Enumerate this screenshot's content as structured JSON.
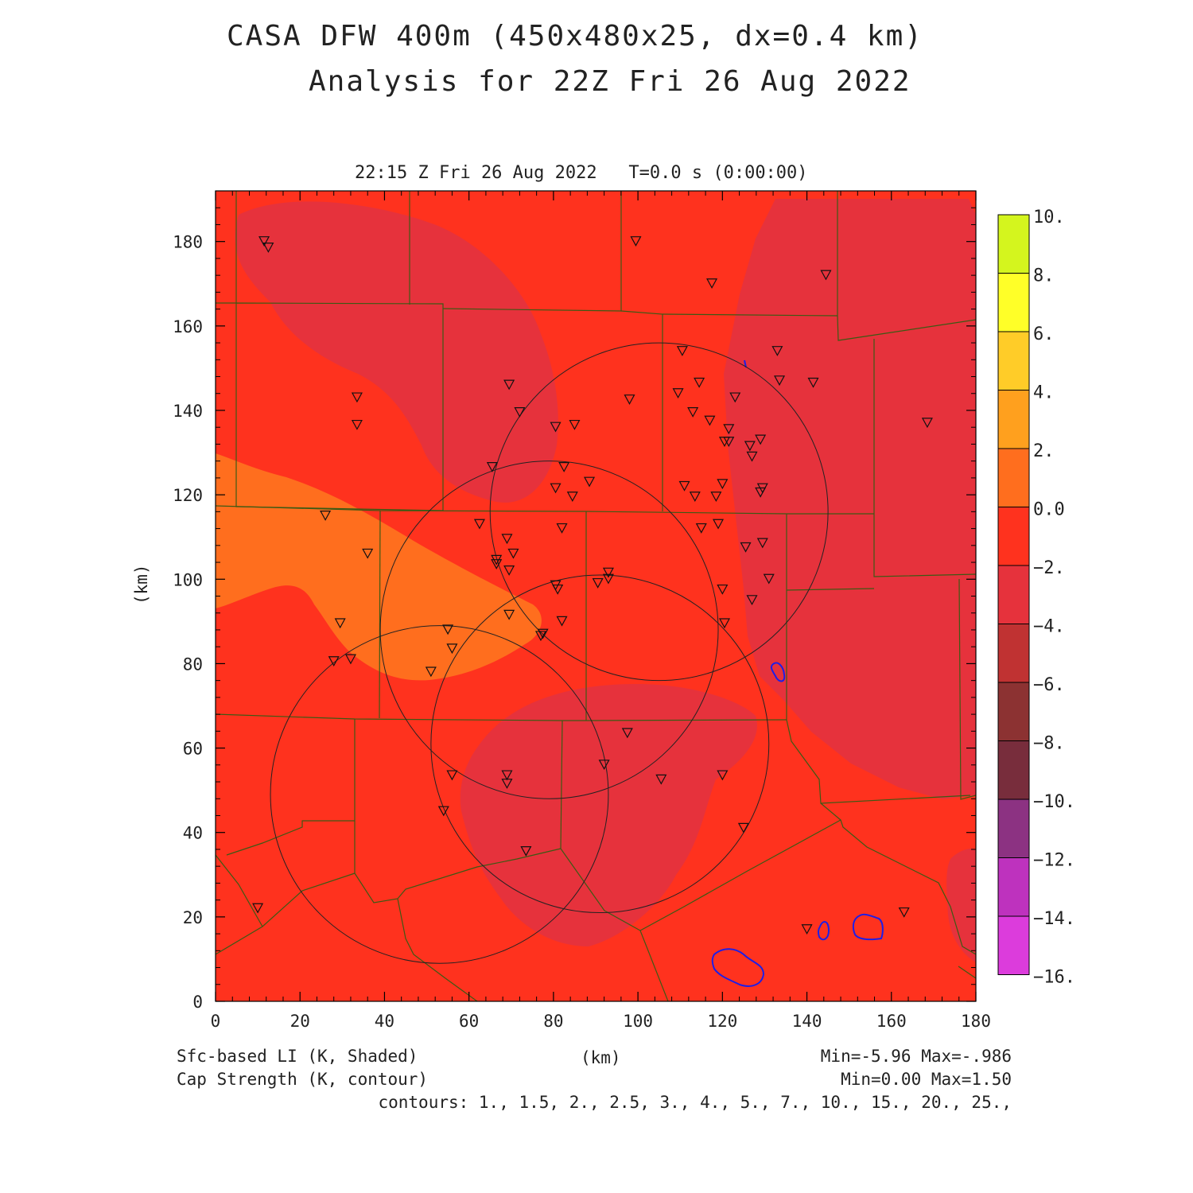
{
  "title_line1": "CASA DFW 400m (450x480x25, dx=0.4 km)",
  "title_line2": "Analysis for 22Z Fri 26 Aug 2022",
  "valid_time": "22:15 Z Fri 26 Aug 2022   T=0.0 s (0:00:00)",
  "xlabel": "(km)",
  "ylabel": "(km)",
  "shaded_label": "Sfc-based LI (K, Shaded)",
  "contour_label": "Cap Strength (K, contour)",
  "shaded_range": "Min=-5.96 Max=-.986",
  "contour_range": "Min=0.00 Max=1.50",
  "contour_list": "contours: 1., 1.5, 2., 2.5, 3., 4., 5., 7., 10., 15., 20., 25.,",
  "chart_data": {
    "type": "heatmap",
    "x_ticks": [
      0,
      20,
      40,
      60,
      80,
      100,
      120,
      140,
      160,
      180
    ],
    "y_ticks": [
      0,
      20,
      40,
      60,
      80,
      100,
      120,
      140,
      160,
      180
    ],
    "xlim": [
      0,
      180
    ],
    "ylim": [
      0,
      192
    ],
    "colorbar": {
      "labels": [
        "10.",
        "8.",
        "6.",
        "4.",
        "2.",
        "0.0",
        "−2.",
        "−4.",
        "−6.",
        "−8.",
        "−10.",
        "−12.",
        "−14.",
        "−16."
      ],
      "colors": [
        "#a8e01e",
        "#d4f51e",
        "#ffff28",
        "#ffcc28",
        "#ffa01e",
        "#ff6e1e",
        "#ff321e",
        "#e6323c",
        "#c03232",
        "#8c3232",
        "#782d3c",
        "#8c3282",
        "#be32be",
        "#dc3cdc"
      ]
    },
    "radar_rings": [
      {
        "cx": 105,
        "cy": 116,
        "r": 40
      },
      {
        "cx": 79,
        "cy": 88,
        "r": 40
      },
      {
        "cx": 91,
        "cy": 61,
        "r": 40
      },
      {
        "cx": 53,
        "cy": 49,
        "r": 40
      }
    ],
    "stations": [
      [
        11.5,
        180
      ],
      [
        12.5,
        178.5
      ],
      [
        99.5,
        180
      ],
      [
        117.5,
        170
      ],
      [
        144.5,
        172
      ],
      [
        33.5,
        143
      ],
      [
        33.5,
        136.5
      ],
      [
        69.5,
        146
      ],
      [
        72,
        139.5
      ],
      [
        80.5,
        136
      ],
      [
        85,
        136.5
      ],
      [
        98,
        142.5
      ],
      [
        110.5,
        154
      ],
      [
        109.5,
        144
      ],
      [
        114.5,
        146.5
      ],
      [
        113,
        139.5
      ],
      [
        117,
        137.5
      ],
      [
        123,
        143
      ],
      [
        121.5,
        135.5
      ],
      [
        120.5,
        132.5
      ],
      [
        121.5,
        132.5
      ],
      [
        126.5,
        131.5
      ],
      [
        127,
        129
      ],
      [
        129,
        133
      ],
      [
        133,
        154
      ],
      [
        133.5,
        147
      ],
      [
        141.5,
        146.5
      ],
      [
        168.5,
        137
      ],
      [
        65.5,
        126.5
      ],
      [
        82.5,
        126.5
      ],
      [
        88.5,
        123
      ],
      [
        80.5,
        121.5
      ],
      [
        84.5,
        119.5
      ],
      [
        111,
        122
      ],
      [
        113.5,
        119.5
      ],
      [
        118.5,
        119.5
      ],
      [
        120,
        122.5
      ],
      [
        129.5,
        121.5
      ],
      [
        129,
        120.5
      ],
      [
        26,
        115
      ],
      [
        62.5,
        113
      ],
      [
        69,
        109.5
      ],
      [
        70.5,
        106
      ],
      [
        66.5,
        104.5
      ],
      [
        66.5,
        103.5
      ],
      [
        69.5,
        102
      ],
      [
        82,
        112
      ],
      [
        36,
        106
      ],
      [
        115,
        112
      ],
      [
        119,
        113
      ],
      [
        125.5,
        107.5
      ],
      [
        129.5,
        108.5
      ],
      [
        131,
        100
      ],
      [
        93,
        101.5
      ],
      [
        93,
        100
      ],
      [
        80.5,
        98.5
      ],
      [
        81,
        97.5
      ],
      [
        90.5,
        99
      ],
      [
        120,
        97.5
      ],
      [
        127,
        95
      ],
      [
        29.5,
        89.5
      ],
      [
        69.5,
        91.5
      ],
      [
        82,
        90
      ],
      [
        77.5,
        87
      ],
      [
        77,
        86.5
      ],
      [
        120.5,
        89.5
      ],
      [
        55,
        88
      ],
      [
        56,
        83.5
      ],
      [
        28,
        80.5
      ],
      [
        32,
        81
      ],
      [
        51,
        78
      ],
      [
        97.5,
        63.5
      ],
      [
        56,
        53.5
      ],
      [
        69,
        53.5
      ],
      [
        69,
        51.5
      ],
      [
        92,
        56
      ],
      [
        105.5,
        52.5
      ],
      [
        120,
        53.5
      ],
      [
        54,
        45
      ],
      [
        73.5,
        35.5
      ],
      [
        125,
        41
      ],
      [
        10,
        22
      ],
      [
        140,
        17
      ],
      [
        163,
        21
      ]
    ]
  }
}
